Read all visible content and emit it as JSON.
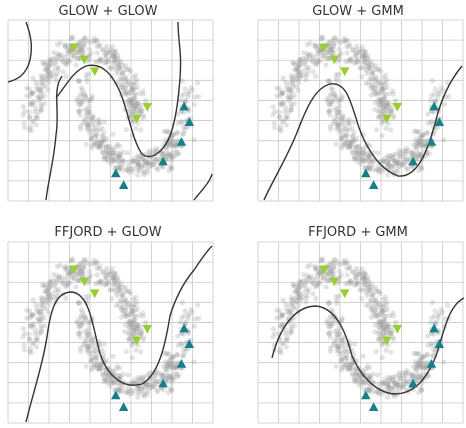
{
  "figure": {
    "colors": {
      "grid": "#c8c8c8",
      "points": "#9a9a9a",
      "boundary": "#333333",
      "class_a_marker": "#9acd32",
      "class_b_marker": "#16808a"
    }
  },
  "chart_data": [
    {
      "type": "scatter",
      "title": "GLOW + GLOW",
      "grid": true,
      "legend": "none",
      "series": [
        {
          "marker": "triangle-down",
          "color": "#9acd32",
          "x": [
            -0.2,
            0.0,
            0.2,
            1.0,
            1.2
          ],
          "y": [
            1.0,
            0.85,
            0.7,
            0.1,
            0.25
          ]
        },
        {
          "marker": "triangle-up",
          "color": "#16808a",
          "x": [
            1.5,
            1.9,
            2.0,
            1.85,
            0.6,
            0.75
          ],
          "y": [
            -0.45,
            0.25,
            0.05,
            -0.2,
            -0.6,
            -0.75
          ]
        }
      ]
    },
    {
      "type": "scatter",
      "title": "GLOW + GMM",
      "grid": true,
      "legend": "none",
      "series": [
        {
          "marker": "triangle-down",
          "color": "#9acd32",
          "x": [
            -0.2,
            0.0,
            0.2,
            1.0,
            1.2
          ],
          "y": [
            1.0,
            0.85,
            0.7,
            0.1,
            0.25
          ]
        },
        {
          "marker": "triangle-up",
          "color": "#16808a",
          "x": [
            1.5,
            1.9,
            2.0,
            1.85,
            0.6,
            0.75
          ],
          "y": [
            -0.45,
            0.25,
            0.05,
            -0.2,
            -0.6,
            -0.75
          ]
        }
      ]
    },
    {
      "type": "scatter",
      "title": "FFJORD + GLOW",
      "grid": true,
      "legend": "none",
      "series": [
        {
          "marker": "triangle-down",
          "color": "#9acd32",
          "x": [
            -0.2,
            0.0,
            0.2,
            1.0,
            1.2
          ],
          "y": [
            1.0,
            0.85,
            0.7,
            0.1,
            0.25
          ]
        },
        {
          "marker": "triangle-up",
          "color": "#16808a",
          "x": [
            1.5,
            1.9,
            2.0,
            1.85,
            0.6,
            0.75
          ],
          "y": [
            -0.45,
            0.25,
            0.05,
            -0.2,
            -0.6,
            -0.75
          ]
        }
      ]
    },
    {
      "type": "scatter",
      "title": "FFJORD + GMM",
      "grid": true,
      "legend": "none",
      "series": [
        {
          "marker": "triangle-down",
          "color": "#9acd32",
          "x": [
            -0.2,
            0.0,
            0.2,
            1.0,
            1.2
          ],
          "y": [
            1.0,
            0.85,
            0.7,
            0.1,
            0.25
          ]
        },
        {
          "marker": "triangle-up",
          "color": "#16808a",
          "x": [
            1.5,
            1.9,
            2.0,
            1.85,
            0.6,
            0.75
          ],
          "y": [
            -0.45,
            0.25,
            0.05,
            -0.2,
            -0.6,
            -0.75
          ]
        }
      ]
    }
  ]
}
